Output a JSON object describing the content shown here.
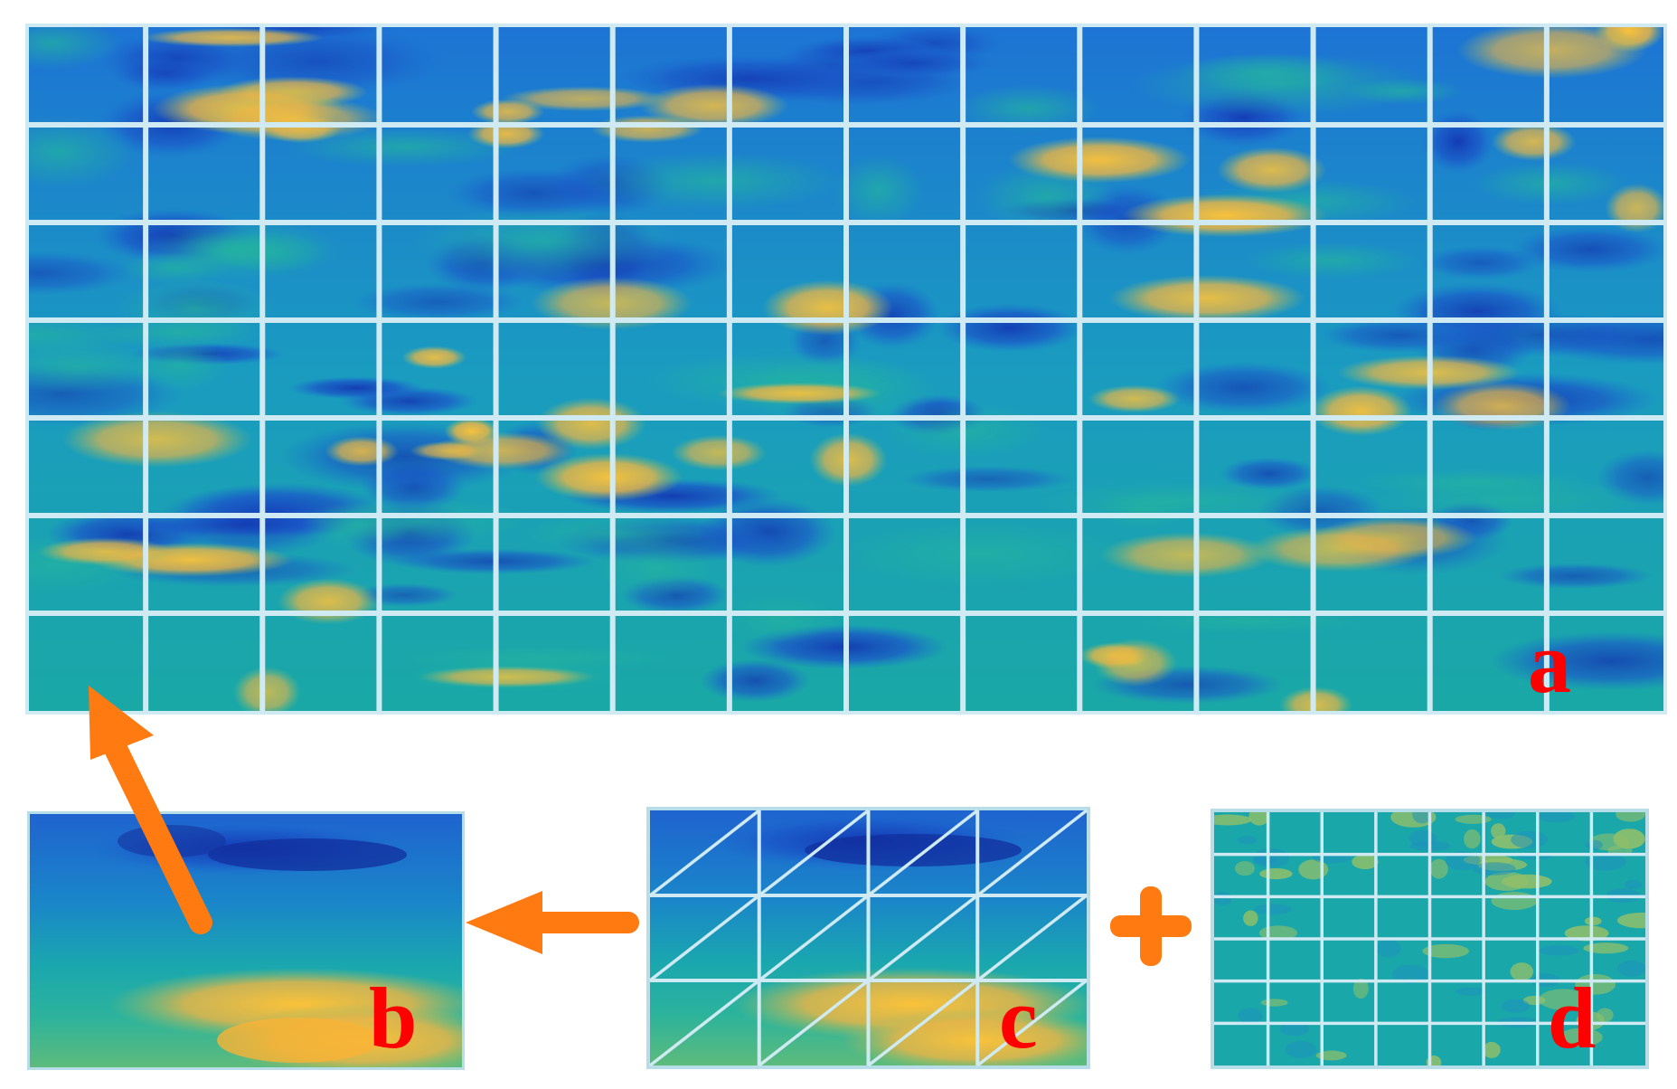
{
  "panels": {
    "a": {
      "label": "a",
      "grid": {
        "rows": 7,
        "cols": 14
      }
    },
    "b": {
      "label": "b"
    },
    "c": {
      "label": "c",
      "grid": {
        "rows": 3,
        "cols": 4
      },
      "diagonals": true
    },
    "d": {
      "label": "d",
      "grid": {
        "rows": 6,
        "cols": 8
      }
    }
  },
  "connectors": {
    "plus_symbol": "+",
    "arrow_color": "#ff7a10"
  },
  "colors": {
    "label": "#ff0000",
    "grid_line": "#cfeaf2",
    "border": "#b6dde8",
    "field_low": "#1c4fc6",
    "field_mid": "#1aa6a8",
    "field_high": "#f4b63f"
  }
}
